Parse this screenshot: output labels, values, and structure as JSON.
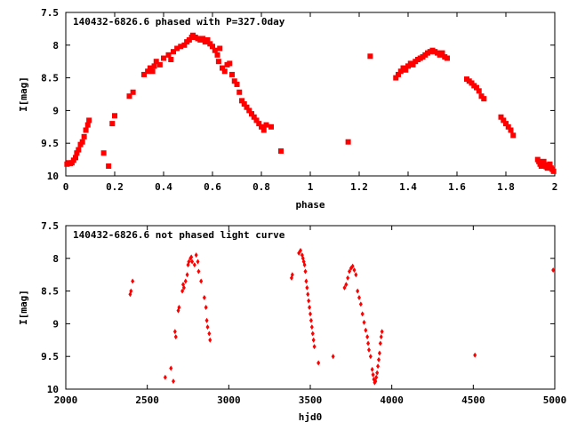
{
  "chart_data": [
    {
      "type": "scatter",
      "title": "140432-6826.6 phased with P=327.0day",
      "xlabel": "phase",
      "ylabel": "I[mag]",
      "xlim": [
        0,
        2
      ],
      "ylim": [
        7.5,
        10
      ],
      "y_inverted": true,
      "grid": false,
      "x_ticks": [
        "0",
        "0.2",
        "0.4",
        "0.6",
        "0.8",
        "1",
        "1.2",
        "1.4",
        "1.6",
        "1.8",
        "2"
      ],
      "y_ticks": [
        "7.5",
        "8",
        "8.5",
        "9",
        "9.5",
        "10"
      ],
      "series": [
        {
          "color": "#ff0000",
          "marker": "filled-square",
          "points": [
            [
              0.005,
              9.82
            ],
            [
              0.012,
              9.8
            ],
            [
              0.018,
              9.81
            ],
            [
              0.025,
              9.8
            ],
            [
              0.032,
              9.76
            ],
            [
              0.04,
              9.72
            ],
            [
              0.045,
              9.65
            ],
            [
              0.052,
              9.6
            ],
            [
              0.06,
              9.52
            ],
            [
              0.068,
              9.48
            ],
            [
              0.075,
              9.4
            ],
            [
              0.082,
              9.3
            ],
            [
              0.09,
              9.22
            ],
            [
              0.095,
              9.15
            ],
            [
              0.155,
              9.65
            ],
            [
              0.175,
              9.85
            ],
            [
              0.19,
              9.2
            ],
            [
              0.2,
              9.08
            ],
            [
              0.26,
              8.78
            ],
            [
              0.275,
              8.72
            ],
            [
              0.32,
              8.45
            ],
            [
              0.335,
              8.4
            ],
            [
              0.345,
              8.35
            ],
            [
              0.355,
              8.4
            ],
            [
              0.362,
              8.32
            ],
            [
              0.37,
              8.25
            ],
            [
              0.385,
              8.3
            ],
            [
              0.4,
              8.2
            ],
            [
              0.42,
              8.15
            ],
            [
              0.43,
              8.22
            ],
            [
              0.44,
              8.1
            ],
            [
              0.455,
              8.05
            ],
            [
              0.47,
              8.02
            ],
            [
              0.485,
              8.0
            ],
            [
              0.495,
              7.95
            ],
            [
              0.505,
              7.92
            ],
            [
              0.515,
              7.88
            ],
            [
              0.52,
              7.85
            ],
            [
              0.53,
              7.88
            ],
            [
              0.54,
              7.9
            ],
            [
              0.55,
              7.92
            ],
            [
              0.56,
              7.9
            ],
            [
              0.57,
              7.95
            ],
            [
              0.58,
              7.92
            ],
            [
              0.59,
              7.98
            ],
            [
              0.6,
              8.02
            ],
            [
              0.61,
              8.08
            ],
            [
              0.62,
              8.15
            ],
            [
              0.625,
              8.25
            ],
            [
              0.63,
              8.05
            ],
            [
              0.64,
              8.35
            ],
            [
              0.65,
              8.4
            ],
            [
              0.66,
              8.3
            ],
            [
              0.67,
              8.28
            ],
            [
              0.68,
              8.45
            ],
            [
              0.69,
              8.55
            ],
            [
              0.7,
              8.6
            ],
            [
              0.71,
              8.72
            ],
            [
              0.72,
              8.85
            ],
            [
              0.73,
              8.9
            ],
            [
              0.74,
              8.95
            ],
            [
              0.75,
              9.0
            ],
            [
              0.76,
              9.05
            ],
            [
              0.77,
              9.1
            ],
            [
              0.78,
              9.15
            ],
            [
              0.79,
              9.2
            ],
            [
              0.8,
              9.25
            ],
            [
              0.81,
              9.3
            ],
            [
              0.82,
              9.22
            ],
            [
              0.84,
              9.25
            ],
            [
              0.88,
              9.62
            ],
            [
              1.155,
              9.48
            ],
            [
              1.245,
              8.17
            ],
            [
              1.35,
              8.5
            ],
            [
              1.36,
              8.45
            ],
            [
              1.37,
              8.4
            ],
            [
              1.38,
              8.35
            ],
            [
              1.39,
              8.38
            ],
            [
              1.4,
              8.32
            ],
            [
              1.41,
              8.28
            ],
            [
              1.42,
              8.3
            ],
            [
              1.43,
              8.25
            ],
            [
              1.44,
              8.22
            ],
            [
              1.45,
              8.2
            ],
            [
              1.46,
              8.18
            ],
            [
              1.47,
              8.15
            ],
            [
              1.48,
              8.12
            ],
            [
              1.49,
              8.1
            ],
            [
              1.5,
              8.08
            ],
            [
              1.51,
              8.1
            ],
            [
              1.52,
              8.12
            ],
            [
              1.53,
              8.15
            ],
            [
              1.54,
              8.12
            ],
            [
              1.55,
              8.18
            ],
            [
              1.56,
              8.2
            ],
            [
              1.64,
              8.52
            ],
            [
              1.65,
              8.55
            ],
            [
              1.66,
              8.58
            ],
            [
              1.67,
              8.62
            ],
            [
              1.68,
              8.65
            ],
            [
              1.69,
              8.7
            ],
            [
              1.7,
              8.78
            ],
            [
              1.71,
              8.82
            ],
            [
              1.78,
              9.1
            ],
            [
              1.79,
              9.15
            ],
            [
              1.8,
              9.2
            ],
            [
              1.81,
              9.25
            ],
            [
              1.82,
              9.3
            ],
            [
              1.83,
              9.38
            ],
            [
              1.93,
              9.75
            ],
            [
              1.935,
              9.78
            ],
            [
              1.94,
              9.82
            ],
            [
              1.945,
              9.85
            ],
            [
              1.95,
              9.8
            ],
            [
              1.955,
              9.78
            ],
            [
              1.96,
              9.83
            ],
            [
              1.965,
              9.86
            ],
            [
              1.97,
              9.88
            ],
            [
              1.975,
              9.85
            ],
            [
              1.98,
              9.82
            ],
            [
              1.985,
              9.88
            ],
            [
              1.99,
              9.9
            ],
            [
              1.995,
              9.93
            ]
          ]
        }
      ]
    },
    {
      "type": "scatter",
      "title": "140432-6826.6 not phased light curve",
      "xlabel": "hjd0",
      "ylabel": "I[mag]",
      "xlim": [
        2000,
        5000
      ],
      "ylim": [
        7.5,
        10
      ],
      "y_inverted": true,
      "grid": false,
      "x_ticks": [
        "2000",
        "2500",
        "3000",
        "3500",
        "4000",
        "4500",
        "5000"
      ],
      "y_ticks": [
        "7.5",
        "8",
        "8.5",
        "9",
        "9.5",
        "10"
      ],
      "series": [
        {
          "color": "#ff0000",
          "marker": "filled-diamond",
          "points": [
            [
              2395,
              8.55
            ],
            [
              2400,
              8.5
            ],
            [
              2410,
              8.35
            ],
            [
              2610,
              9.82
            ],
            [
              2645,
              9.68
            ],
            [
              2660,
              9.88
            ],
            [
              2670,
              9.12
            ],
            [
              2675,
              9.2
            ],
            [
              2690,
              8.8
            ],
            [
              2695,
              8.75
            ],
            [
              2715,
              8.5
            ],
            [
              2720,
              8.4
            ],
            [
              2725,
              8.45
            ],
            [
              2735,
              8.35
            ],
            [
              2745,
              8.25
            ],
            [
              2750,
              8.1
            ],
            [
              2755,
              8.05
            ],
            [
              2765,
              8.0
            ],
            [
              2770,
              7.98
            ],
            [
              2775,
              8.05
            ],
            [
              2790,
              8.1
            ],
            [
              2800,
              7.95
            ],
            [
              2810,
              8.05
            ],
            [
              2815,
              8.2
            ],
            [
              2830,
              8.35
            ],
            [
              2850,
              8.6
            ],
            [
              2860,
              8.75
            ],
            [
              2865,
              8.95
            ],
            [
              2870,
              9.05
            ],
            [
              2880,
              9.15
            ],
            [
              2885,
              9.25
            ],
            [
              3385,
              8.3
            ],
            [
              3390,
              8.25
            ],
            [
              3430,
              7.92
            ],
            [
              3440,
              7.88
            ],
            [
              3450,
              7.95
            ],
            [
              3455,
              8.0
            ],
            [
              3460,
              8.05
            ],
            [
              3465,
              8.1
            ],
            [
              3470,
              8.2
            ],
            [
              3475,
              8.35
            ],
            [
              3480,
              8.45
            ],
            [
              3485,
              8.55
            ],
            [
              3490,
              8.65
            ],
            [
              3495,
              8.75
            ],
            [
              3500,
              8.85
            ],
            [
              3505,
              8.95
            ],
            [
              3510,
              9.05
            ],
            [
              3515,
              9.15
            ],
            [
              3520,
              9.25
            ],
            [
              3525,
              9.35
            ],
            [
              3550,
              9.6
            ],
            [
              3640,
              9.5
            ],
            [
              3710,
              8.45
            ],
            [
              3720,
              8.4
            ],
            [
              3730,
              8.3
            ],
            [
              3740,
              8.2
            ],
            [
              3750,
              8.15
            ],
            [
              3760,
              8.12
            ],
            [
              3770,
              8.18
            ],
            [
              3780,
              8.25
            ],
            [
              3790,
              8.5
            ],
            [
              3800,
              8.6
            ],
            [
              3810,
              8.7
            ],
            [
              3820,
              8.85
            ],
            [
              3830,
              8.98
            ],
            [
              3840,
              9.1
            ],
            [
              3850,
              9.2
            ],
            [
              3855,
              9.3
            ],
            [
              3860,
              9.4
            ],
            [
              3870,
              9.5
            ],
            [
              3880,
              9.7
            ],
            [
              3885,
              9.78
            ],
            [
              3890,
              9.85
            ],
            [
              3895,
              9.9
            ],
            [
              3900,
              9.88
            ],
            [
              3905,
              9.82
            ],
            [
              3910,
              9.75
            ],
            [
              3915,
              9.65
            ],
            [
              3920,
              9.55
            ],
            [
              3925,
              9.45
            ],
            [
              3930,
              9.3
            ],
            [
              3935,
              9.2
            ],
            [
              3940,
              9.12
            ],
            [
              4510,
              9.48
            ],
            [
              4990,
              8.18
            ]
          ]
        }
      ]
    }
  ]
}
